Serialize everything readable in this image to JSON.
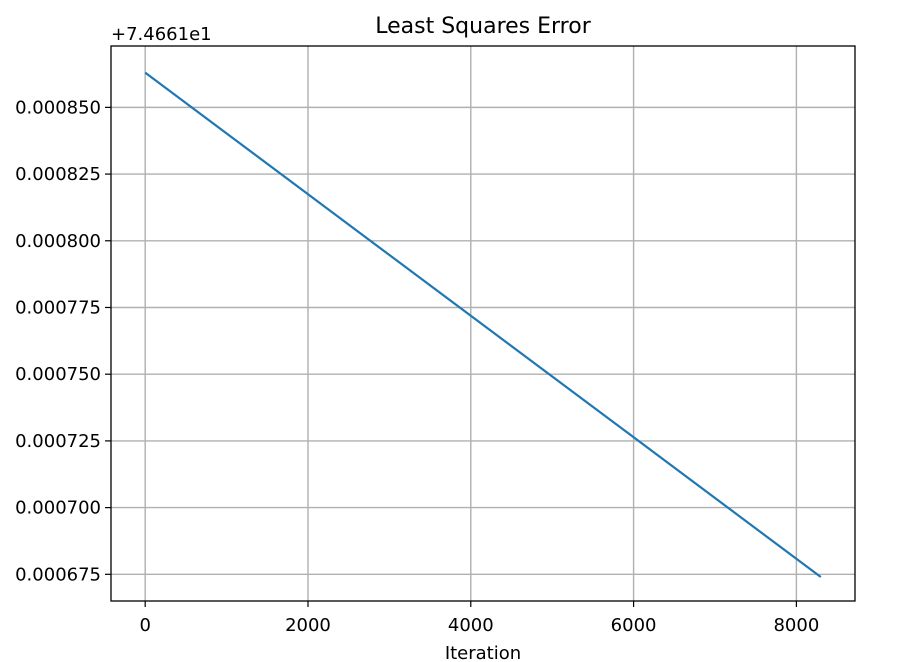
{
  "chart_data": {
    "type": "line",
    "title": "Least Squares Error",
    "xlabel": "Iteration",
    "ylabel": "",
    "y_offset_label": "+7.4661e1",
    "xlim": [
      -420,
      8720
    ],
    "ylim": [
      0.000665,
      0.000873
    ],
    "x_ticks": [
      0,
      2000,
      4000,
      6000,
      8000
    ],
    "x_tick_labels": [
      "0",
      "2000",
      "4000",
      "6000",
      "8000"
    ],
    "y_ticks": [
      0.000675,
      0.0007,
      0.000725,
      0.00075,
      0.000775,
      0.0008,
      0.000825,
      0.00085
    ],
    "y_tick_labels": [
      "0.000675",
      "0.000700",
      "0.000725",
      "0.000750",
      "0.000775",
      "0.000800",
      "0.000825",
      "0.000850"
    ],
    "grid": true,
    "series": [
      {
        "name": "",
        "color": "#1f77b4",
        "x": [
          0,
          8300
        ],
        "y": [
          0.000863,
          0.000674
        ]
      }
    ]
  }
}
